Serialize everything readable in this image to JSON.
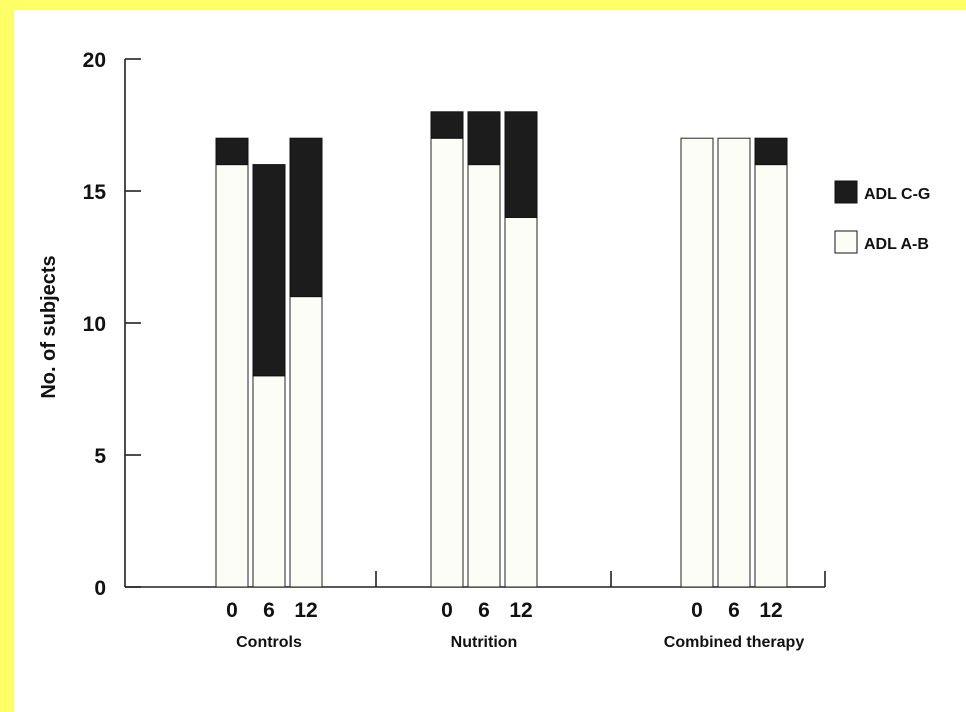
{
  "colors": {
    "page_border": "#ffff66",
    "background": "#ffffff",
    "adl_cg": "#1c1c1c",
    "adl_ab": "#fdfdf8",
    "axis": "#222222"
  },
  "chart_data": {
    "type": "bar",
    "stacked": true,
    "ylabel": "No. of subjects",
    "ylim": [
      0,
      20
    ],
    "yticks": [
      0,
      5,
      10,
      15,
      20
    ],
    "legend_position": "right",
    "groups": [
      {
        "name": "Controls",
        "timepoints": [
          "0",
          "6",
          "12"
        ]
      },
      {
        "name": "Nutrition",
        "timepoints": [
          "0",
          "6",
          "12"
        ]
      },
      {
        "name": "Combined therapy",
        "timepoints": [
          "0",
          "6",
          "12"
        ]
      }
    ],
    "series": [
      {
        "name": "ADL A-B",
        "values": [
          [
            16,
            8,
            11
          ],
          [
            17,
            16,
            14
          ],
          [
            17,
            17,
            16
          ]
        ]
      },
      {
        "name": "ADL C-G",
        "values": [
          [
            1,
            8,
            6
          ],
          [
            1,
            2,
            4
          ],
          [
            0,
            0,
            1
          ]
        ]
      }
    ],
    "legend": [
      "ADL C-G",
      "ADL A-B"
    ]
  }
}
